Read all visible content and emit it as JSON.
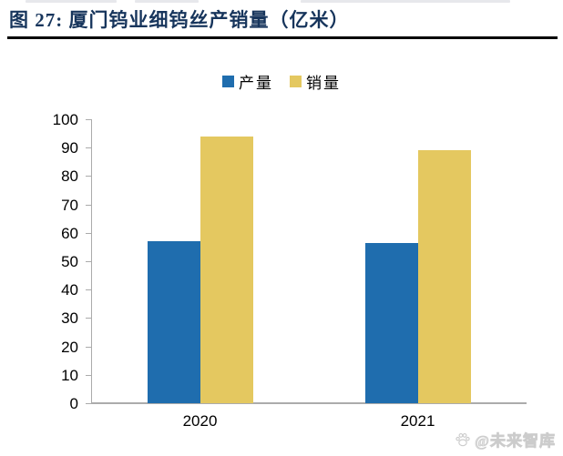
{
  "header": {
    "title": "图 27:  厦门钨业细钨丝产销量（亿米）",
    "title_color": "#17355C",
    "rule_color": "#000000"
  },
  "chart_data": {
    "type": "bar",
    "title": "厦门钨业细钨丝产销量（亿米）",
    "categories": [
      "2020",
      "2021"
    ],
    "series": [
      {
        "name": "产量",
        "color": "#1F6DAE",
        "values": [
          57,
          56.5
        ]
      },
      {
        "name": "销量",
        "color": "#E4C860",
        "values": [
          94,
          89
        ]
      }
    ],
    "ylim": [
      0,
      100
    ],
    "ytick_step": 10,
    "xlabel": "",
    "ylabel": "",
    "grid": false,
    "legend_position": "top",
    "axis_color": "#ABABAB",
    "tick_label_color": "#000000"
  },
  "watermark": {
    "icon": "paw-icon",
    "text": "@未来智库"
  }
}
